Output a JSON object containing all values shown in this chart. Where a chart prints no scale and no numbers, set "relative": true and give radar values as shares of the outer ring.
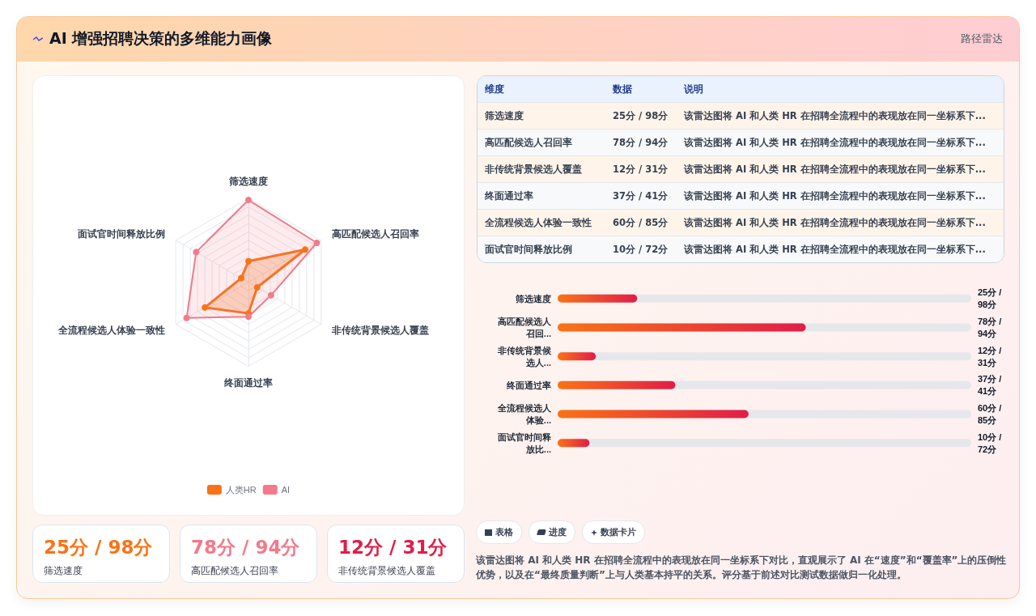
{
  "chart_data": [
    {
      "type": "other",
      "title": "AI 增强招聘决策的多维能力画像",
      "subtitle": "路径雷达"
    },
    {
      "type": "radar",
      "categories": [
        "筛选速度",
        "高匹配候选人召回率",
        "非传统背景候选人覆盖",
        "终面通过率",
        "全流程候选人体验一致性",
        "面试官时间释放比例"
      ],
      "series": [
        {
          "name": "人类HR",
          "color": "#f97316",
          "values": [
            0.25,
            0.78,
            0.12,
            0.37,
            0.6,
            0.1
          ]
        },
        {
          "name": "AI",
          "color": "#f27a8a",
          "values": [
            0.98,
            0.94,
            0.31,
            0.41,
            0.85,
            0.72
          ]
        }
      ],
      "relative": true,
      "grid": true,
      "legend": "bottom",
      "marker": "circle"
    },
    {
      "type": "other",
      "annotations": [
        "维度",
        "数据",
        "说明",
        "筛选速度",
        "25分 / 98分",
        "该雷达图将 AI 和人类 HR 在招聘全流程中的表现放在同一坐标系下...",
        "高匹配候选人召回率",
        "78分 / 94分",
        "该雷达图将 AI 和人类 HR 在招聘全流程中的表现放在同一坐标系下...",
        "非传统背景候选人覆盖",
        "12分 / 31分",
        "该雷达图将 AI 和人类 HR 在招聘全流程中的表现放在同一坐标系下...",
        "终面通过率",
        "37分 / 41分",
        "该雷达图将 AI 和人类 HR 在招聘全流程中的表现放在同一坐标系下...",
        "全流程候选人体验一致性",
        "60分 / 85分",
        "该雷达图将 AI 和人类 HR 在招聘全流程中的表现放在同一坐标系下...",
        "面试官时间释放比例",
        "10分 / 72分",
        "该雷达图将 AI 和人类 HR 在招聘全流程中的表现放在同一坐标系下..."
      ]
    },
    {
      "type": "bar",
      "orientation": "horizontal",
      "categories": [
        "筛选速度",
        "高匹配候选人召回...",
        "非传统背景候选人...",
        "终面通过率",
        "全流程候选人体验...",
        "面试官时间释放比..."
      ],
      "values": [
        25,
        78,
        12,
        37,
        60,
        10
      ],
      "color": "#e11d48",
      "value_labels": [
        "25分 / 98分",
        "78分 / 94分",
        "12分 / 31分",
        "37分 / 41分",
        "60分 / 85分",
        "10分 / 72分"
      ],
      "xlim": [
        0,
        130
      ]
    },
    {
      "type": "other",
      "annotations": [
        "25分 / 98分",
        "筛选速度",
        "78分 / 94分",
        "高匹配候选人召回率",
        "12分 / 31分",
        "非传统背景候选人覆盖"
      ]
    },
    {
      "type": "other",
      "annotations": [
        "表格",
        "进度",
        "数据卡片",
        "该雷达图将 AI 和人类 HR 在招聘全流程中的表现放在同一坐标系下对比，直观展示了 AI 在“速度”和“覆盖率”上的压倒性优势，以及在“最终质量判断”上与人类基本持平的关系。评分基于前述对比测试数据做归一化处理。"
      ]
    }
  ]
}
